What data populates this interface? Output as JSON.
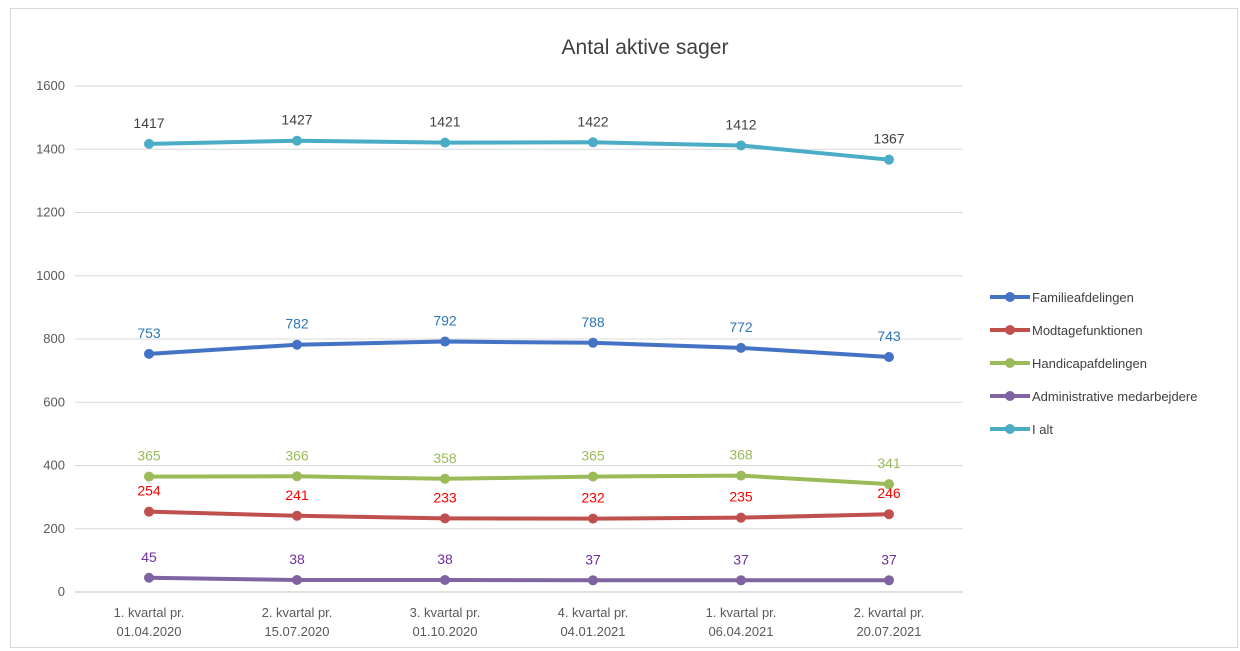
{
  "chart_data": {
    "type": "line",
    "title": "Antal aktive sager",
    "xlabel": "",
    "ylabel": "",
    "ylim": [
      0,
      1600
    ],
    "yticks": [
      0,
      200,
      400,
      600,
      800,
      1000,
      1200,
      1400,
      1600
    ],
    "grid": true,
    "legend_position": "right",
    "categories": [
      [
        "1. kvartal pr.",
        "01.04.2020"
      ],
      [
        "2. kvartal pr.",
        "15.07.2020"
      ],
      [
        "3. kvartal pr.",
        "01.10.2020"
      ],
      [
        "4. kvartal pr.",
        "04.01.2021"
      ],
      [
        "1. kvartal pr.",
        "06.04.2021"
      ],
      [
        "2. kvartal pr.",
        "20.07.2021"
      ]
    ],
    "series": [
      {
        "name": "Familieafdelingen",
        "color": "#4472c4",
        "label_color": "#2e75b6",
        "values": [
          753,
          782,
          792,
          788,
          772,
          743
        ]
      },
      {
        "name": "Modtagefunktionen",
        "color": "#c0504d",
        "label_color": "#ff0000",
        "values": [
          254,
          241,
          233,
          232,
          235,
          246
        ]
      },
      {
        "name": "Handicapafdelingen",
        "color": "#9bbb59",
        "label_color": "#9bbb59",
        "values": [
          365,
          366,
          358,
          365,
          368,
          341
        ]
      },
      {
        "name": "Administrative medarbejdere",
        "color": "#8064a2",
        "label_color": "#7030a0",
        "values": [
          45,
          38,
          38,
          37,
          37,
          37
        ]
      },
      {
        "name": "I alt",
        "color": "#4bacc6",
        "label_color": "#404040",
        "values": [
          1417,
          1427,
          1421,
          1422,
          1412,
          1367
        ]
      }
    ]
  }
}
